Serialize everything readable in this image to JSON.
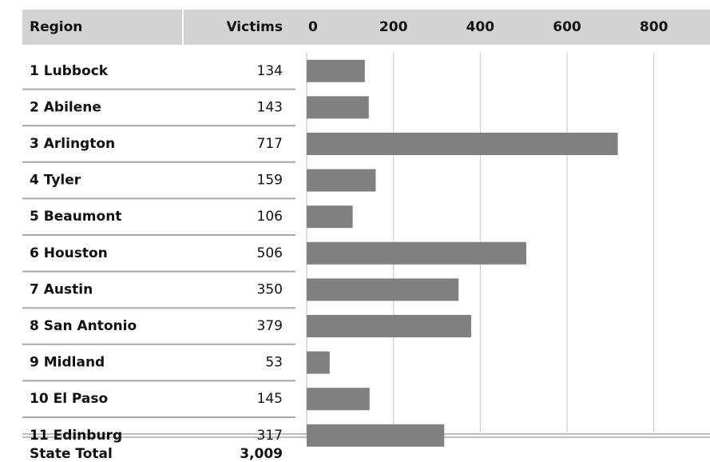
{
  "chart_data": {
    "type": "bar",
    "headers": [
      "Region",
      "Victims"
    ],
    "categories": [
      "1 Lubbock",
      "2 Abilene",
      "3 Arlington",
      "4 Tyler",
      "5 Beaumont",
      "6 Houston",
      "7 Austin",
      "8 San Antonio",
      "9 Midland",
      "10 El Paso",
      "11 Edinburg"
    ],
    "values": [
      134,
      143,
      717,
      159,
      106,
      506,
      350,
      379,
      53,
      145,
      317
    ],
    "color": "#808080",
    "xlim": [
      0,
      900
    ],
    "xticks": [
      0,
      200,
      400,
      600,
      800
    ],
    "grid": true,
    "total_label": "State Total",
    "total": "3,009"
  }
}
